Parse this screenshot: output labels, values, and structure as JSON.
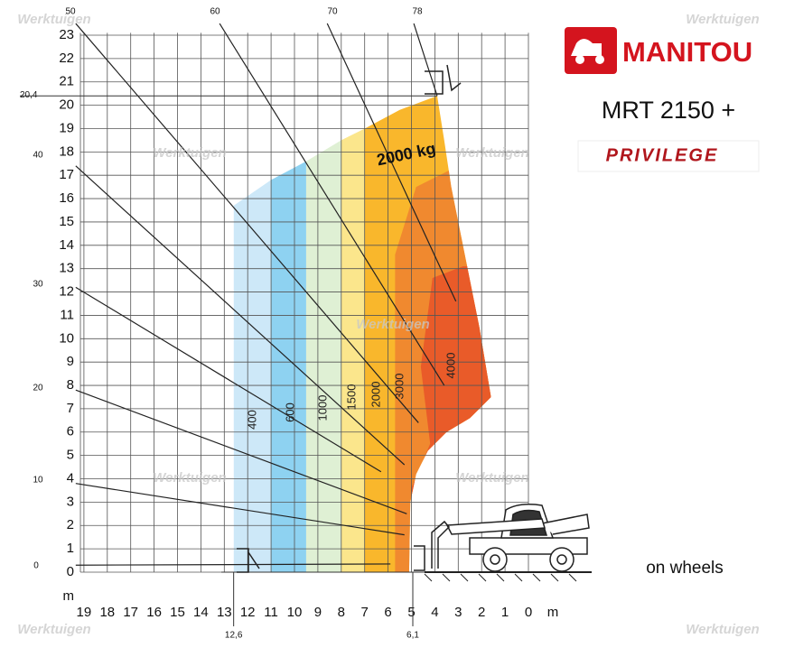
{
  "axis": {
    "y_labels": [
      0,
      1,
      2,
      3,
      4,
      5,
      6,
      7,
      8,
      9,
      10,
      11,
      12,
      13,
      14,
      15,
      16,
      17,
      18,
      19,
      20,
      21,
      22,
      23
    ],
    "y_unit": "m",
    "x_labels": [
      19,
      18,
      17,
      16,
      15,
      14,
      13,
      12,
      11,
      10,
      9,
      8,
      7,
      6,
      5,
      4,
      3,
      2,
      1,
      0
    ],
    "x_unit": "m"
  },
  "markers": {
    "max_height": "20,4",
    "max_reach": "12,6",
    "min_reach": "6,1"
  },
  "boom_angles": [
    0,
    10,
    20,
    30,
    40,
    50,
    60,
    70,
    78
  ],
  "load_zones": [
    400,
    600,
    1000,
    1500,
    2000,
    3000,
    4000
  ],
  "capacity_label": "2000 kg",
  "brand": {
    "logo": "MANITOU",
    "model": "MRT 2150 +",
    "series": "PRIVILEGE",
    "note": "on wheels"
  },
  "watermark": "Werktuigen"
}
